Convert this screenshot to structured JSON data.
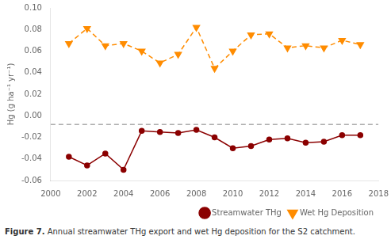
{
  "chart_data": {
    "type": "line",
    "ylabel": "Hg (g ha⁻¹ yr⁻¹)",
    "caption_label": "Figure 7.",
    "caption": "Annual streamwater THg export and wet Hg deposition for the S2 catchment.",
    "x": [
      2001,
      2002,
      2003,
      2004,
      2005,
      2006,
      2007,
      2008,
      2009,
      2010,
      2011,
      2012,
      2013,
      2014,
      2015,
      2016,
      2017
    ],
    "series": [
      {
        "name": "Streamwater THg",
        "color": "#8B0000",
        "marker": "circle",
        "line_style": "solid",
        "values": [
          -0.038,
          -0.046,
          -0.035,
          -0.05,
          -0.014,
          -0.015,
          -0.016,
          -0.013,
          -0.02,
          -0.03,
          -0.028,
          -0.022,
          -0.021,
          -0.025,
          -0.024,
          -0.018,
          -0.018
        ]
      },
      {
        "name": "Wet Hg Deposition",
        "color": "#FF8C00",
        "marker": "triangle_down",
        "line_style": "dashed",
        "values": [
          0.067,
          0.081,
          0.065,
          0.067,
          0.06,
          0.049,
          0.057,
          0.082,
          0.044,
          0.06,
          0.075,
          0.076,
          0.063,
          0.065,
          0.063,
          0.07,
          0.066
        ]
      }
    ],
    "hlines": [
      {
        "value": -0.008,
        "color": "#808080",
        "line_style": "dashed"
      }
    ],
    "xlim": [
      2000,
      2018
    ],
    "ylim": [
      -0.06,
      0.1
    ],
    "xticks": [
      2000,
      2002,
      2004,
      2006,
      2008,
      2010,
      2012,
      2014,
      2016,
      2018
    ],
    "yticks": [
      -0.06,
      -0.04,
      -0.02,
      {
        "value": 0.0,
        "label": "0.00"
      },
      0.02,
      0.04,
      0.06,
      0.08,
      {
        "value": 0.1,
        "label": "0.10"
      }
    ],
    "grid": false,
    "legend": "lower right"
  }
}
